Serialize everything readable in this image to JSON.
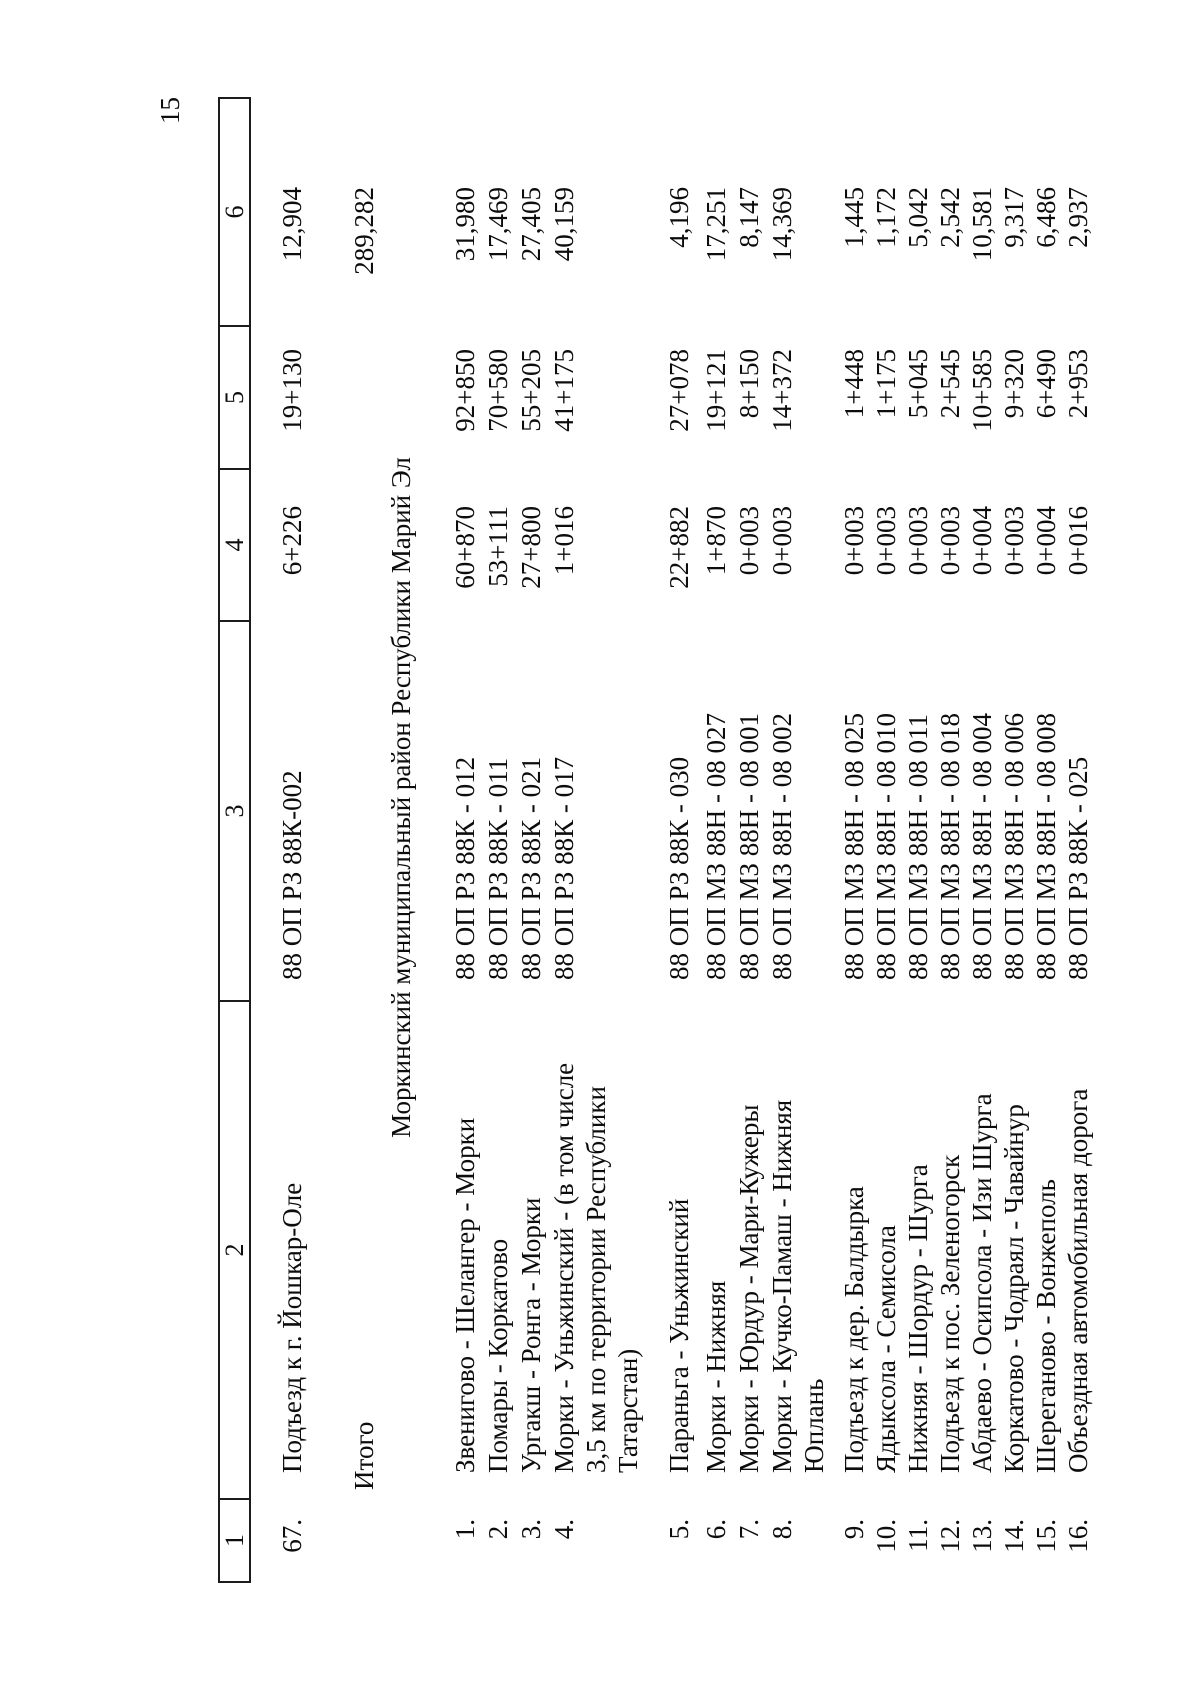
{
  "page_number": "15",
  "table": {
    "columns": [
      "1",
      "2",
      "3",
      "4",
      "5",
      "6"
    ],
    "section_header": "Моркинский муниципальный район Республики Марий Эл",
    "total_label": "Итого",
    "total_value": "289,282",
    "rows": [
      {
        "type": "data",
        "num": "67.",
        "name": "Подъезд к г. Йошкар-Оле",
        "code": "88 ОП РЗ 88К-002",
        "start": "6+226",
        "end": "19+130",
        "length": "12,904"
      },
      {
        "type": "total"
      },
      {
        "type": "section"
      },
      {
        "type": "data",
        "num": "1.",
        "name": "Звенигово - Шелангер - Морки",
        "code": "88 ОП РЗ 88К - 012",
        "start": "60+870",
        "end": "92+850",
        "length": "31,980"
      },
      {
        "type": "data",
        "num": "2.",
        "name": "Помары - Коркатово",
        "code": "88 ОП РЗ 88К - 011",
        "start": "53+111",
        "end": "70+580",
        "length": "17,469"
      },
      {
        "type": "data",
        "num": "3.",
        "name": "Ургакш - Ронга - Морки",
        "code": "88 ОП РЗ 88К - 021",
        "start": "27+800",
        "end": "55+205",
        "length": "27,405"
      },
      {
        "type": "data",
        "num": "4.",
        "name": "Морки - Уньжинский - (в том числе\n3,5 км по территории Республики\nТатарстан)",
        "code": "88 ОП РЗ 88К - 017",
        "start": "1+016",
        "end": "41+175",
        "length": "40,159"
      },
      {
        "type": "data",
        "num": "5.",
        "name": "Параньга - Уньжинский",
        "code": "88 ОП РЗ 88К - 030",
        "start": "22+882",
        "end": "27+078",
        "length": "4,196"
      },
      {
        "type": "data",
        "num": "6.",
        "name": "Морки - Нижняя",
        "code": "88 ОП МЗ 88Н - 08 027",
        "start": "1+870",
        "end": "19+121",
        "length": "17,251"
      },
      {
        "type": "data",
        "num": "7.",
        "name": "Морки - Юрдур - Мари-Кужеры",
        "code": "88 ОП МЗ 88Н - 08 001",
        "start": "0+003",
        "end": "8+150",
        "length": "8,147"
      },
      {
        "type": "data",
        "num": "8.",
        "name": "Морки - Кучко-Памаш - Нижняя\nЮплань",
        "code": "88 ОП МЗ 88Н - 08 002",
        "start": "0+003",
        "end": "14+372",
        "length": "14,369"
      },
      {
        "type": "data",
        "num": "9.",
        "name": "Подъезд к дер. Балдырка",
        "code": "88 ОП МЗ 88Н - 08 025",
        "start": "0+003",
        "end": "1+448",
        "length": "1,445"
      },
      {
        "type": "data",
        "num": "10.",
        "name": "Ядыксола - Семисола",
        "code": "88 ОП МЗ 88Н - 08 010",
        "start": "0+003",
        "end": "1+175",
        "length": "1,172"
      },
      {
        "type": "data",
        "num": "11.",
        "name": "Нижняя - Шордур - Шурга",
        "code": "88 ОП МЗ 88Н - 08 011",
        "start": "0+003",
        "end": "5+045",
        "length": "5,042"
      },
      {
        "type": "data",
        "num": "12.",
        "name": "Подъезд к пос. Зеленогорск",
        "code": "88 ОП МЗ 88Н - 08 018",
        "start": "0+003",
        "end": "2+545",
        "length": "2,542"
      },
      {
        "type": "data",
        "num": "13.",
        "name": "Абдаево - Осипсола - Изи Шурга",
        "code": "88 ОП МЗ 88Н - 08 004",
        "start": "0+004",
        "end": "10+585",
        "length": "10,581"
      },
      {
        "type": "data",
        "num": "14.",
        "name": "Коркатово - Чодраял - Чавайнур",
        "code": "88 ОП МЗ 88Н - 08 006",
        "start": "0+003",
        "end": "9+320",
        "length": "9,317"
      },
      {
        "type": "data",
        "num": "15.",
        "name": "Шереганово - Вонжеполь",
        "code": "88 ОП МЗ 88Н - 08 008",
        "start": "0+004",
        "end": "6+490",
        "length": "6,486"
      },
      {
        "type": "data",
        "num": "16.",
        "name": "Объездная автомобильная дорога",
        "code": "88 ОП РЗ 88К - 025",
        "start": "0+016",
        "end": "2+953",
        "length": "2,937"
      }
    ]
  }
}
